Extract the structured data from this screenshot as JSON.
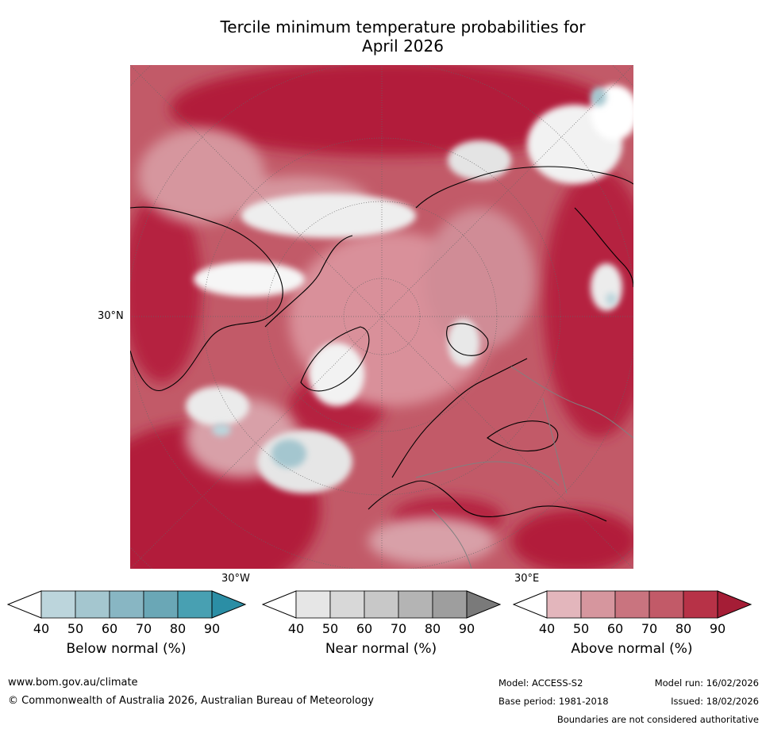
{
  "title_line1": "Tercile minimum temperature probabilities for",
  "title_line2": "April 2026",
  "map": {
    "lat_label": "30°N",
    "lon_label_left": "30°W",
    "lon_label_right": "30°E"
  },
  "legends": [
    {
      "name": "below",
      "label": "Below normal (%)",
      "ticks": [
        "40",
        "50",
        "60",
        "70",
        "80",
        "90"
      ],
      "colors": [
        "#ffffff",
        "#bcd5dc",
        "#a4c6cf",
        "#88b6c3",
        "#6aa7b6",
        "#48a0b2",
        "#2b8ea5"
      ]
    },
    {
      "name": "near",
      "label": "Near normal (%)",
      "ticks": [
        "40",
        "50",
        "60",
        "70",
        "80",
        "90"
      ],
      "colors": [
        "#ffffff",
        "#e6e6e6",
        "#d8d8d8",
        "#c8c8c8",
        "#b4b4b4",
        "#9e9e9e",
        "#7a7a7a"
      ]
    },
    {
      "name": "above",
      "label": "Above normal (%)",
      "ticks": [
        "40",
        "50",
        "60",
        "70",
        "80",
        "90"
      ],
      "colors": [
        "#ffffff",
        "#e3b6bc",
        "#d6969e",
        "#c9747f",
        "#c25a68",
        "#b73247",
        "#a51d36"
      ]
    }
  ],
  "footer": {
    "website": "www.bom.gov.au/climate",
    "copyright": "© Commonwealth of Australia 2026, Australian Bureau of Meteorology",
    "model": "Model: ACCESS-S2",
    "model_run": "Model run: 16/02/2026",
    "base_period": "Base period: 1981-2018",
    "issued": "Issued: 18/02/2026",
    "disclaimer": "Boundaries are not considered authoritative"
  }
}
